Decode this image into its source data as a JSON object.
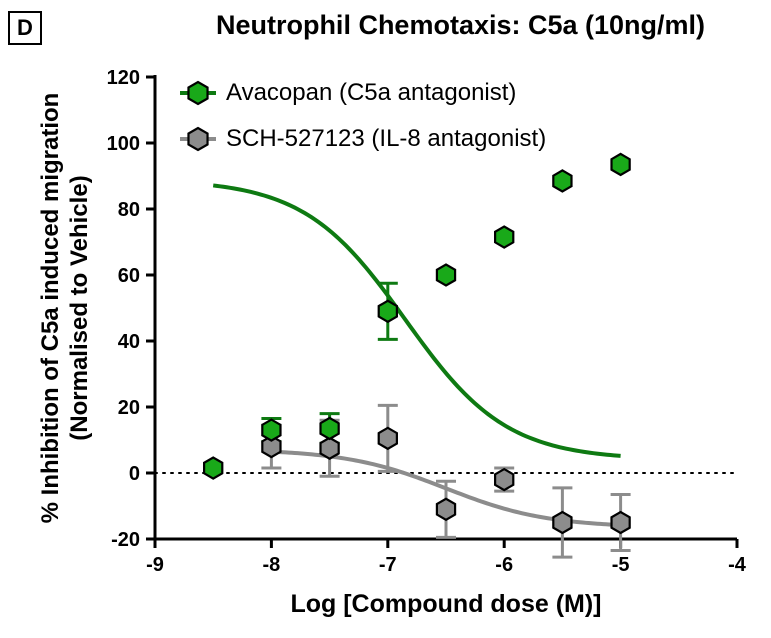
{
  "panel_label": "D",
  "chart_data": {
    "type": "scatter",
    "title": "Neutrophil Chemotaxis: C5a (10ng/ml)",
    "xlabel": "Log [Compound dose (M)]",
    "ylabel_line1": "% Inhibition of C5a induced migration",
    "ylabel_line2": "(Normalised to Vehicle)",
    "xlim": [
      -9,
      -4
    ],
    "ylim": [
      -20,
      120
    ],
    "xticks": [
      -9,
      -8,
      -7,
      -6,
      -5,
      -4
    ],
    "yticks": [
      -20,
      0,
      20,
      40,
      60,
      80,
      100,
      120
    ],
    "reference_line_y": 0,
    "legend_position": "top-left",
    "series": [
      {
        "name": "Avacopan (C5a antagonist)",
        "color": "#19A919",
        "line_color": "#0E7A12",
        "x": [
          -8.5,
          -8,
          -7.5,
          -7,
          -6.5,
          -6,
          -5.5,
          -5
        ],
        "y": [
          1.5,
          13,
          13.5,
          49,
          60,
          71.5,
          88.5,
          93.5
        ],
        "error": [
          0,
          3.5,
          4.5,
          8.5,
          0,
          0,
          0,
          0
        ],
        "fit": {
          "bottom": 4,
          "top": 89,
          "log_ec50": -6.85,
          "hill": 1.0
        }
      },
      {
        "name": "SCH-527123 (IL-8 antagonist)",
        "color": "#8C8C8C",
        "line_color": "#8C8C8C",
        "x": [
          -8,
          -7.5,
          -7,
          -6.5,
          -6,
          -5.5,
          -5
        ],
        "y": [
          8,
          7.5,
          10.5,
          -11,
          -2,
          -15,
          -15
        ],
        "error": [
          6.5,
          8.5,
          10,
          8.5,
          3.5,
          10.5,
          8.5
        ],
        "fit": {
          "bottom": -16.5,
          "top": 7.2,
          "log_ec50": -6.5,
          "hill": 1.0
        }
      }
    ]
  }
}
